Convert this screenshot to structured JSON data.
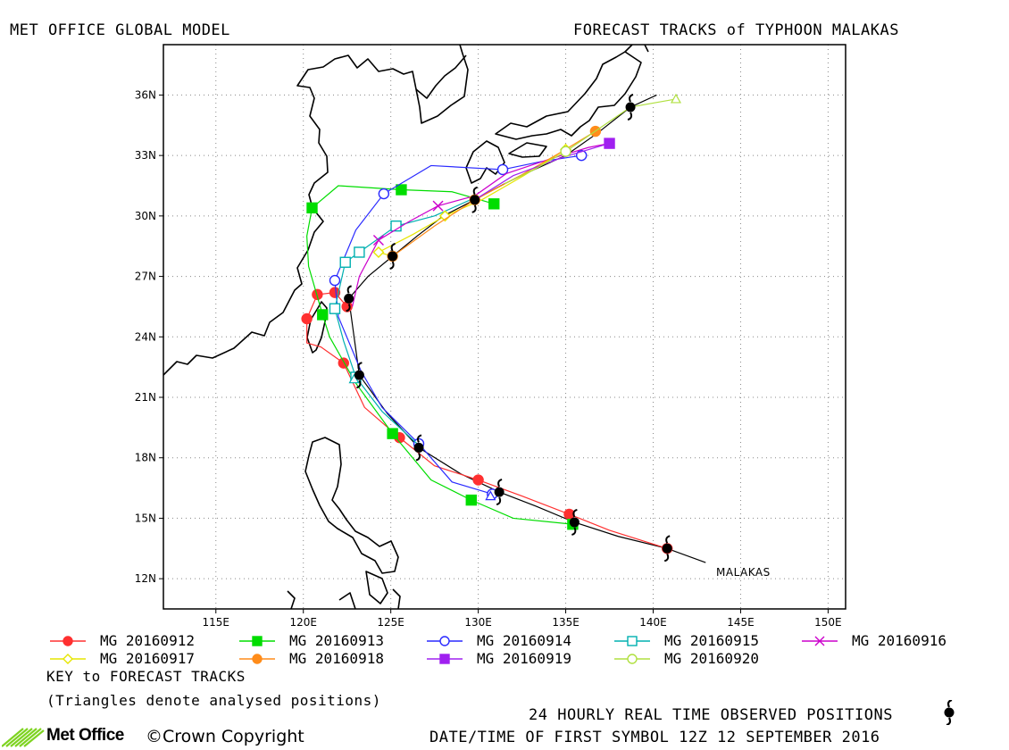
{
  "header": {
    "left_title": "MET OFFICE GLOBAL MODEL",
    "right_title": "FORECAST TRACKS of TYPHOON MALAKAS"
  },
  "map": {
    "lon_range": [
      112,
      151
    ],
    "lat_range": [
      10.5,
      38.5
    ],
    "lon_ticks": [
      115,
      120,
      125,
      130,
      135,
      140,
      145,
      150
    ],
    "lon_tick_labels": [
      "115E",
      "120E",
      "125E",
      "130E",
      "135E",
      "140E",
      "145E",
      "150E"
    ],
    "lat_ticks": [
      12,
      15,
      18,
      21,
      24,
      27,
      30,
      33,
      36
    ],
    "lat_tick_labels": [
      "12N",
      "15N",
      "18N",
      "21N",
      "24N",
      "27N",
      "30N",
      "33N",
      "36N"
    ],
    "grid": "dotted",
    "storm_label": "MALAKAS"
  },
  "chart_data": {
    "type": "line",
    "x_unit": "degrees east longitude",
    "y_unit": "degrees north latitude",
    "observed_track": {
      "points": [
        [
          143.0,
          12.8
        ],
        [
          140.8,
          13.5
        ],
        [
          138.0,
          14.1
        ],
        [
          135.5,
          14.8
        ],
        [
          133.3,
          15.6
        ],
        [
          131.2,
          16.3
        ],
        [
          129.0,
          17.2
        ],
        [
          126.6,
          18.5
        ],
        [
          124.8,
          20.2
        ],
        [
          123.2,
          22.1
        ],
        [
          122.9,
          24.0
        ],
        [
          122.6,
          25.9
        ],
        [
          123.7,
          27.0
        ],
        [
          125.1,
          28.0
        ],
        [
          126.5,
          29.0
        ],
        [
          128.0,
          30.0
        ],
        [
          129.8,
          30.8
        ],
        [
          131.5,
          31.6
        ],
        [
          133.2,
          32.3
        ],
        [
          135.0,
          33.0
        ],
        [
          136.8,
          34.1
        ],
        [
          138.7,
          35.4
        ],
        [
          140.2,
          36.0
        ]
      ],
      "symbols": [
        [
          140.8,
          13.5
        ],
        [
          135.5,
          14.8
        ],
        [
          131.2,
          16.3
        ],
        [
          126.6,
          18.5
        ],
        [
          123.2,
          22.1
        ],
        [
          122.6,
          25.9
        ],
        [
          125.1,
          28.0
        ],
        [
          129.8,
          30.8
        ],
        [
          138.7,
          35.4
        ]
      ]
    },
    "series": [
      {
        "name": "MG 20160912",
        "color": "#ff3030",
        "marker": "circle",
        "filled": true,
        "points": [
          [
            140.8,
            13.5
          ],
          [
            135.2,
            15.2
          ],
          [
            130.0,
            16.9
          ],
          [
            125.5,
            19.0
          ],
          [
            122.3,
            22.7
          ],
          [
            120.2,
            24.9
          ],
          [
            120.8,
            26.1
          ],
          [
            121.8,
            26.2
          ],
          [
            122.5,
            25.5
          ]
        ],
        "path": [
          [
            140.8,
            13.5
          ],
          [
            137.5,
            14.4
          ],
          [
            135.2,
            15.2
          ],
          [
            132.5,
            16.1
          ],
          [
            130.0,
            16.9
          ],
          [
            127.5,
            17.6
          ],
          [
            125.5,
            19.0
          ],
          [
            123.5,
            20.5
          ],
          [
            122.3,
            22.7
          ],
          [
            121.0,
            23.5
          ],
          [
            120.2,
            23.7
          ],
          [
            120.2,
            24.9
          ],
          [
            120.8,
            26.1
          ],
          [
            121.8,
            26.2
          ],
          [
            122.5,
            25.5
          ]
        ]
      },
      {
        "name": "MG 20160913",
        "color": "#00dd00",
        "marker": "square",
        "filled": true,
        "points": [
          [
            135.4,
            14.7
          ],
          [
            129.6,
            15.9
          ],
          [
            125.1,
            19.2
          ],
          [
            121.1,
            25.1
          ],
          [
            120.5,
            30.4
          ],
          [
            125.6,
            31.3
          ],
          [
            130.9,
            30.6
          ]
        ],
        "path": [
          [
            135.4,
            14.7
          ],
          [
            132.0,
            15.0
          ],
          [
            129.6,
            15.9
          ],
          [
            127.3,
            16.9
          ],
          [
            125.1,
            19.2
          ],
          [
            123.0,
            21.7
          ],
          [
            121.5,
            24.0
          ],
          [
            121.1,
            25.1
          ],
          [
            120.3,
            27.5
          ],
          [
            120.2,
            29.0
          ],
          [
            120.5,
            30.4
          ],
          [
            122.0,
            31.5
          ],
          [
            125.6,
            31.3
          ],
          [
            128.5,
            31.2
          ],
          [
            130.9,
            30.6
          ]
        ]
      },
      {
        "name": "MG 20160914",
        "color": "#2a2aff",
        "marker": "circle",
        "filled": false,
        "points": [
          [
            130.8,
            16.2
          ],
          [
            126.6,
            18.7
          ],
          [
            121.8,
            26.8
          ],
          [
            124.6,
            31.1
          ],
          [
            131.4,
            32.3
          ],
          [
            135.9,
            33.0
          ]
        ],
        "path": [
          [
            130.8,
            16.2
          ],
          [
            128.5,
            16.8
          ],
          [
            126.6,
            18.7
          ],
          [
            124.5,
            20.5
          ],
          [
            123.3,
            22.3
          ],
          [
            122.0,
            25.0
          ],
          [
            121.8,
            26.8
          ],
          [
            123.0,
            29.3
          ],
          [
            124.6,
            31.1
          ],
          [
            127.3,
            32.5
          ],
          [
            131.4,
            32.3
          ],
          [
            133.6,
            32.7
          ],
          [
            135.9,
            33.0
          ]
        ]
      },
      {
        "name": "MG 20160915",
        "color": "#00b0b0",
        "marker": "square",
        "filled": false,
        "points": [
          [
            123.0,
            22.0
          ],
          [
            121.8,
            25.4
          ],
          [
            122.4,
            27.7
          ],
          [
            123.2,
            28.2
          ],
          [
            125.3,
            29.5
          ]
        ],
        "path": [
          [
            126.5,
            18.7
          ],
          [
            124.5,
            20.3
          ],
          [
            123.0,
            22.0
          ],
          [
            122.3,
            23.8
          ],
          [
            121.8,
            25.4
          ],
          [
            122.4,
            27.7
          ],
          [
            123.2,
            28.2
          ],
          [
            125.3,
            29.5
          ],
          [
            127.5,
            30.0
          ],
          [
            129.8,
            30.9
          ]
        ]
      },
      {
        "name": "MG 20160916",
        "color": "#cc00cc",
        "marker": "x",
        "filled": false,
        "points": [
          [
            124.3,
            28.8
          ],
          [
            127.7,
            30.5
          ]
        ],
        "path": [
          [
            122.8,
            25.5
          ],
          [
            123.2,
            27.0
          ],
          [
            124.3,
            28.8
          ],
          [
            126.0,
            29.7
          ],
          [
            127.7,
            30.5
          ],
          [
            129.8,
            31.0
          ],
          [
            131.6,
            32.1
          ],
          [
            134.0,
            32.8
          ],
          [
            136.3,
            33.4
          ],
          [
            137.5,
            33.6
          ]
        ]
      },
      {
        "name": "MG 20160917",
        "color": "#e6e600",
        "marker": "diamond",
        "filled": false,
        "points": [
          [
            124.3,
            28.2
          ],
          [
            128.1,
            30.0
          ],
          [
            135.0,
            33.3
          ]
        ],
        "path": [
          [
            125.1,
            28.0
          ],
          [
            124.3,
            28.2
          ],
          [
            126.3,
            29.1
          ],
          [
            128.1,
            30.0
          ],
          [
            130.2,
            30.8
          ],
          [
            132.6,
            32.0
          ],
          [
            135.0,
            33.3
          ]
        ]
      },
      {
        "name": "MG 20160918",
        "color": "#ff8c1a",
        "marker": "circle",
        "filled": true,
        "points": [
          [
            125.1,
            28.0
          ],
          [
            129.8,
            30.8
          ],
          [
            136.7,
            34.2
          ]
        ],
        "path": [
          [
            125.1,
            28.0
          ],
          [
            127.5,
            29.5
          ],
          [
            129.8,
            30.8
          ],
          [
            132.4,
            32.0
          ],
          [
            134.6,
            33.1
          ],
          [
            136.7,
            34.2
          ]
        ]
      },
      {
        "name": "MG 20160919",
        "color": "#a020f0",
        "marker": "square",
        "filled": true,
        "points": [
          [
            137.5,
            33.6
          ]
        ],
        "path": [
          [
            129.8,
            30.8
          ],
          [
            132.0,
            32.0
          ],
          [
            134.8,
            32.9
          ],
          [
            137.5,
            33.6
          ]
        ]
      },
      {
        "name": "MG 20160920",
        "color": "#b0e040",
        "marker": "circle",
        "filled": false,
        "points": [
          [
            135.0,
            33.2
          ]
        ],
        "path": [
          [
            131.5,
            31.6
          ],
          [
            133.2,
            32.3
          ],
          [
            135.0,
            33.2
          ],
          [
            138.7,
            35.4
          ],
          [
            141.3,
            35.8
          ]
        ]
      }
    ],
    "analysed_positions": [
      {
        "color": "#b0e040",
        "point": [
          141.3,
          35.8
        ]
      },
      {
        "color": "#2a2aff",
        "point": [
          130.7,
          16.1
        ]
      },
      {
        "color": "#00b0b0",
        "point": [
          122.9,
          21.9
        ]
      }
    ]
  },
  "legend": {
    "items": [
      {
        "label": "MG 20160912",
        "color": "#ff3030",
        "marker": "circle",
        "filled": true
      },
      {
        "label": "MG 20160913",
        "color": "#00dd00",
        "marker": "square",
        "filled": true
      },
      {
        "label": "MG 20160914",
        "color": "#2a2aff",
        "marker": "circle",
        "filled": false
      },
      {
        "label": "MG 20160915",
        "color": "#00b0b0",
        "marker": "square",
        "filled": false
      },
      {
        "label": "MG 20160916",
        "color": "#cc00cc",
        "marker": "x",
        "filled": false
      },
      {
        "label": "MG 20160917",
        "color": "#e6e600",
        "marker": "diamond",
        "filled": false
      },
      {
        "label": "MG 20160918",
        "color": "#ff8c1a",
        "marker": "circle",
        "filled": true
      },
      {
        "label": "MG 20160919",
        "color": "#a020f0",
        "marker": "square",
        "filled": true
      },
      {
        "label": "MG 20160920",
        "color": "#b0e040",
        "marker": "circle",
        "filled": false
      }
    ],
    "key_title": "KEY to FORECAST TRACKS",
    "key_note": "(Triangles denote analysed positions)"
  },
  "footer": {
    "observed_label": "24 HOURLY REAL TIME OBSERVED POSITIONS",
    "first_symbol_label": "DATE/TIME OF FIRST SYMBOL 12Z 12 SEPTEMBER 2016",
    "logo_text": "Met Office",
    "copyright": "©Crown Copyright"
  }
}
